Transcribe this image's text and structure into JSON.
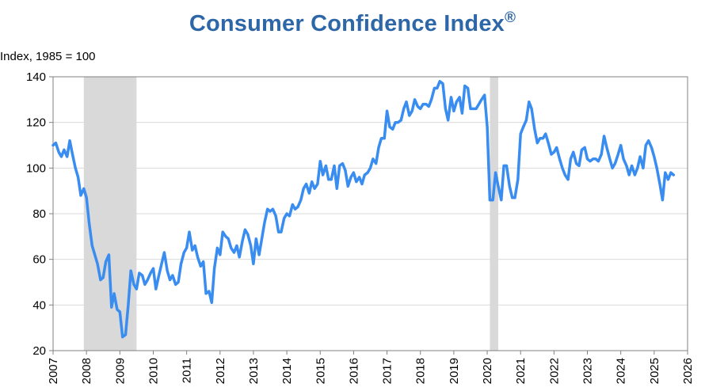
{
  "title": "Consumer Confidence Index",
  "title_mark": "®",
  "chart_data": {
    "type": "line",
    "title": "Consumer Confidence Index®",
    "ylabel": "Index, 1985 = 100",
    "xlabel": "",
    "xlim": [
      2007,
      2026
    ],
    "ylim": [
      20,
      140
    ],
    "yticks": [
      20,
      40,
      60,
      80,
      100,
      120,
      140
    ],
    "xticks": [
      "2007",
      "2008",
      "2009",
      "2010",
      "2011",
      "2012",
      "2013",
      "2014",
      "2015",
      "2016",
      "2017",
      "2018",
      "2019",
      "2020",
      "2021",
      "2022",
      "2023",
      "2024",
      "2025",
      "2026"
    ],
    "grid": true,
    "line_color": "#3A8DF0",
    "recession_color": "#D9D9D9",
    "recessions": [
      [
        2007.92,
        2009.5
      ],
      [
        2020.08,
        2020.33
      ]
    ],
    "series": [
      {
        "x": [
          2007.0,
          2007.08,
          2007.17,
          2007.25,
          2007.33,
          2007.42,
          2007.5,
          2007.58,
          2007.67,
          2007.75,
          2007.83,
          2007.92,
          2008.0,
          2008.08,
          2008.17,
          2008.25,
          2008.33,
          2008.42,
          2008.5,
          2008.58,
          2008.67,
          2008.75,
          2008.83,
          2008.92,
          2009.0,
          2009.08,
          2009.17,
          2009.25,
          2009.33,
          2009.42,
          2009.5,
          2009.58,
          2009.67,
          2009.75,
          2009.83,
          2009.92,
          2010.0,
          2010.08,
          2010.17,
          2010.25,
          2010.33,
          2010.42,
          2010.5,
          2010.58,
          2010.67,
          2010.75,
          2010.83,
          2010.92,
          2011.0,
          2011.08,
          2011.17,
          2011.25,
          2011.33,
          2011.42,
          2011.5,
          2011.58,
          2011.67,
          2011.75,
          2011.83,
          2011.92,
          2012.0,
          2012.08,
          2012.17,
          2012.25,
          2012.33,
          2012.42,
          2012.5,
          2012.58,
          2012.67,
          2012.75,
          2012.83,
          2012.92,
          2013.0,
          2013.08,
          2013.17,
          2013.25,
          2013.33,
          2013.42,
          2013.5,
          2013.58,
          2013.67,
          2013.75,
          2013.83,
          2013.92,
          2014.0,
          2014.08,
          2014.17,
          2014.25,
          2014.33,
          2014.42,
          2014.5,
          2014.58,
          2014.67,
          2014.75,
          2014.83,
          2014.92,
          2015.0,
          2015.08,
          2015.17,
          2015.25,
          2015.33,
          2015.42,
          2015.5,
          2015.58,
          2015.67,
          2015.75,
          2015.83,
          2015.92,
          2016.0,
          2016.08,
          2016.17,
          2016.25,
          2016.33,
          2016.42,
          2016.5,
          2016.58,
          2016.67,
          2016.75,
          2016.83,
          2016.92,
          2017.0,
          2017.08,
          2017.17,
          2017.25,
          2017.33,
          2017.42,
          2017.5,
          2017.58,
          2017.67,
          2017.75,
          2017.83,
          2017.92,
          2018.0,
          2018.08,
          2018.17,
          2018.25,
          2018.33,
          2018.42,
          2018.5,
          2018.58,
          2018.67,
          2018.75,
          2018.83,
          2018.92,
          2019.0,
          2019.08,
          2019.17,
          2019.25,
          2019.33,
          2019.42,
          2019.5,
          2019.58,
          2019.67,
          2019.75,
          2019.83,
          2019.92,
          2020.0,
          2020.08,
          2020.17,
          2020.25,
          2020.33,
          2020.42,
          2020.5,
          2020.58,
          2020.67,
          2020.75,
          2020.83,
          2020.92,
          2021.0,
          2021.08,
          2021.17,
          2021.25,
          2021.33,
          2021.42,
          2021.5,
          2021.58,
          2021.67,
          2021.75,
          2021.83,
          2021.92,
          2022.0,
          2022.08,
          2022.17,
          2022.25,
          2022.33,
          2022.42,
          2022.5,
          2022.58,
          2022.67,
          2022.75,
          2022.83,
          2022.92,
          2023.0,
          2023.08,
          2023.17,
          2023.25,
          2023.33,
          2023.42,
          2023.5,
          2023.58,
          2023.67,
          2023.75,
          2023.83,
          2023.92,
          2024.0,
          2024.08,
          2024.17,
          2024.25,
          2024.33,
          2024.42,
          2024.5,
          2024.58,
          2024.67,
          2024.75,
          2024.83,
          2024.92,
          2025.0,
          2025.08,
          2025.17,
          2025.25,
          2025.33,
          2025.42,
          2025.5,
          2025.58
        ],
        "y": [
          110,
          111,
          107,
          105,
          108,
          105,
          112,
          106,
          100,
          96,
          88,
          91,
          87,
          76,
          66,
          62,
          58,
          51,
          52,
          59,
          62,
          39,
          45,
          38,
          37,
          26,
          27,
          40,
          55,
          49,
          47,
          54,
          53,
          49,
          51,
          54,
          56,
          47,
          53,
          58,
          63,
          55,
          51,
          53,
          49,
          50,
          58,
          63,
          65,
          72,
          64,
          66,
          61,
          57,
          59,
          45,
          46,
          41,
          56,
          65,
          62,
          72,
          70,
          69,
          65,
          63,
          66,
          61,
          68,
          73,
          71,
          66,
          58,
          69,
          62,
          69,
          76,
          82,
          81,
          82,
          79,
          72,
          72,
          78,
          80,
          79,
          84,
          82,
          83,
          86,
          91,
          93,
          89,
          94,
          91,
          93,
          103,
          97,
          101,
          95,
          95,
          101,
          91,
          101,
          102,
          99,
          92,
          96,
          98,
          94,
          96,
          93,
          97,
          98,
          100,
          104,
          102,
          109,
          113,
          113,
          125,
          118,
          117,
          120,
          120,
          121,
          126,
          129,
          123,
          125,
          130,
          127,
          126,
          128,
          128,
          127,
          130,
          135,
          135,
          138,
          137,
          126,
          121,
          131,
          125,
          129,
          131,
          124,
          136,
          135,
          126,
          126,
          126,
          128,
          130,
          132,
          118,
          86,
          86,
          98,
          92,
          86,
          101,
          101,
          92,
          87,
          87,
          95,
          115,
          118,
          121,
          129,
          126,
          117,
          111,
          113,
          113,
          115,
          111,
          106,
          107,
          109,
          104,
          100,
          97,
          95,
          104,
          107,
          102,
          101,
          108,
          109,
          104,
          103,
          104,
          104,
          103,
          106,
          114,
          109,
          104,
          100,
          102,
          106,
          110,
          104,
          101,
          97,
          101,
          97,
          100,
          105,
          100,
          110,
          112,
          109,
          105,
          100,
          93,
          86,
          98,
          95,
          98,
          97
        ]
      }
    ]
  }
}
